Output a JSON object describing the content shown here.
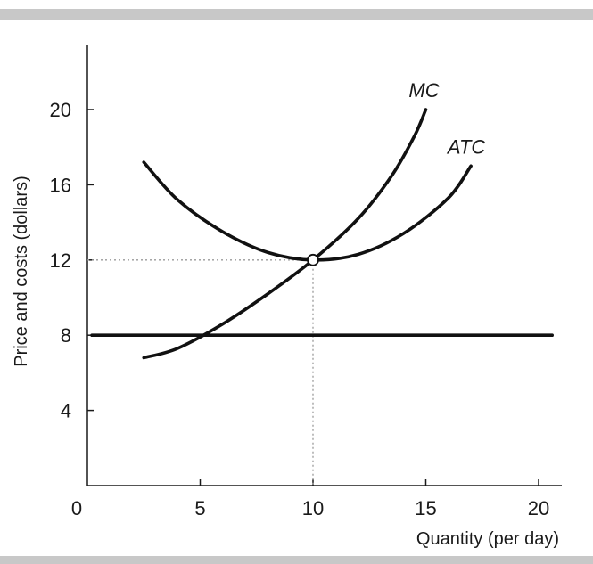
{
  "chart_data": {
    "type": "line",
    "xlabel": "Quantity (per day)",
    "ylabel": "Price and costs (dollars)",
    "xlim": [
      0,
      21
    ],
    "ylim": [
      0,
      23.5
    ],
    "x_ticks": [
      0,
      5,
      10,
      15,
      20
    ],
    "y_ticks": [
      4,
      8,
      12,
      16,
      20
    ],
    "grid": false,
    "series": [
      {
        "name": "MC",
        "points": [
          [
            2.5,
            6.8
          ],
          [
            4,
            7.3
          ],
          [
            6,
            8.6
          ],
          [
            8,
            10.2
          ],
          [
            10,
            12.0
          ],
          [
            12,
            14.2
          ],
          [
            13.5,
            16.5
          ],
          [
            14.5,
            18.6
          ],
          [
            15,
            20.0
          ]
        ]
      },
      {
        "name": "ATC",
        "points": [
          [
            2.5,
            17.2
          ],
          [
            4,
            15.2
          ],
          [
            6,
            13.5
          ],
          [
            8,
            12.4
          ],
          [
            10,
            12.0
          ],
          [
            12,
            12.3
          ],
          [
            14,
            13.4
          ],
          [
            16,
            15.3
          ],
          [
            17,
            17.0
          ]
        ]
      },
      {
        "name": "",
        "points": [
          [
            0.2,
            8
          ],
          [
            20.6,
            8
          ]
        ]
      }
    ],
    "reference_point": {
      "x": 10,
      "y": 12
    }
  },
  "colors": {
    "curve": "#111111",
    "axis": "#1a1a1a",
    "dotted": "#9a9a9a",
    "band": "#c8c8c8"
  }
}
